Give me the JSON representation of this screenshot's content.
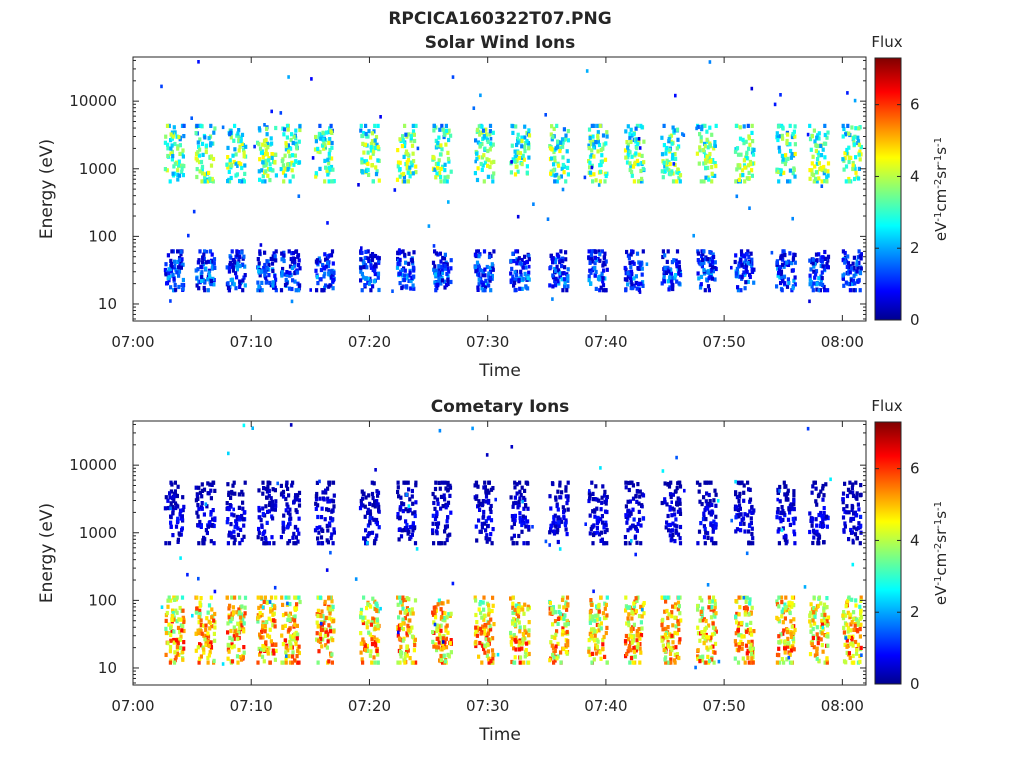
{
  "figure": {
    "title": "RPCICA160322T07.PNG"
  },
  "chart_data": [
    {
      "type": "heatmap",
      "title": "Solar Wind Ions",
      "xlabel": "Time",
      "ylabel": "Energy (eV)",
      "x_ticks": [
        "07:00",
        "07:10",
        "07:20",
        "07:30",
        "07:40",
        "07:50",
        "08:00"
      ],
      "x_tick_minutes": [
        0,
        10,
        20,
        30,
        40,
        50,
        60
      ],
      "xlim_minutes": [
        0,
        62
      ],
      "y_scale": "log",
      "ylim": [
        5.6,
        45000
      ],
      "y_ticks": [
        10,
        100,
        1000,
        10000
      ],
      "y_tick_labels": [
        "10",
        "100",
        "1000",
        "10000"
      ],
      "colorbar": {
        "title": "Flux",
        "label": "eV-1cm-2sr-1s-1",
        "range": [
          0,
          7.3
        ],
        "ticks": [
          0,
          2,
          4,
          6
        ],
        "colormap": "jet"
      },
      "burst_minutes": [
        3.4,
        6.0,
        8.6,
        11.2,
        13.2,
        16.1,
        19.9,
        23.0,
        26.0,
        29.6,
        32.6,
        35.9,
        39.2,
        42.3,
        45.4,
        48.4,
        51.6,
        55.1,
        57.9,
        60.7
      ],
      "bands": [
        {
          "name": "high",
          "center_eV": 1200,
          "spread_eV": [
            650,
            4300
          ],
          "flux_typical": 3.6,
          "flux_range": [
            1.5,
            4.6
          ]
        },
        {
          "name": "low",
          "center_eV": 25,
          "spread_eV": [
            16,
            60
          ],
          "flux_typical": 1.5,
          "flux_range": [
            0.5,
            2.7
          ]
        }
      ]
    },
    {
      "type": "heatmap",
      "title": "Cometary Ions",
      "xlabel": "Time",
      "ylabel": "Energy (eV)",
      "x_ticks": [
        "07:00",
        "07:10",
        "07:20",
        "07:30",
        "07:40",
        "07:50",
        "08:00"
      ],
      "x_tick_minutes": [
        0,
        10,
        20,
        30,
        40,
        50,
        60
      ],
      "xlim_minutes": [
        0,
        62
      ],
      "y_scale": "log",
      "ylim": [
        5.6,
        45000
      ],
      "y_ticks": [
        10,
        100,
        1000,
        10000
      ],
      "y_tick_labels": [
        "10",
        "100",
        "1000",
        "10000"
      ],
      "colorbar": {
        "title": "Flux",
        "label": "eV-1cm-2sr-1s-1",
        "range": [
          0,
          7.3
        ],
        "ticks": [
          0,
          2,
          4,
          6
        ],
        "colormap": "jet"
      },
      "burst_minutes": [
        3.4,
        6.0,
        8.6,
        11.2,
        13.2,
        16.1,
        19.9,
        23.0,
        26.0,
        29.6,
        32.6,
        35.9,
        39.2,
        42.3,
        45.4,
        48.4,
        51.6,
        55.1,
        57.9,
        60.7
      ],
      "bands": [
        {
          "name": "high",
          "center_eV": 1500,
          "spread_eV": [
            700,
            5500
          ],
          "flux_typical": 0.8,
          "flux_range": [
            0.3,
            1.2
          ]
        },
        {
          "name": "low",
          "center_eV": 22,
          "spread_eV": [
            12,
            110
          ],
          "flux_typical": 5.2,
          "flux_range": [
            3.0,
            6.3
          ]
        }
      ]
    }
  ]
}
